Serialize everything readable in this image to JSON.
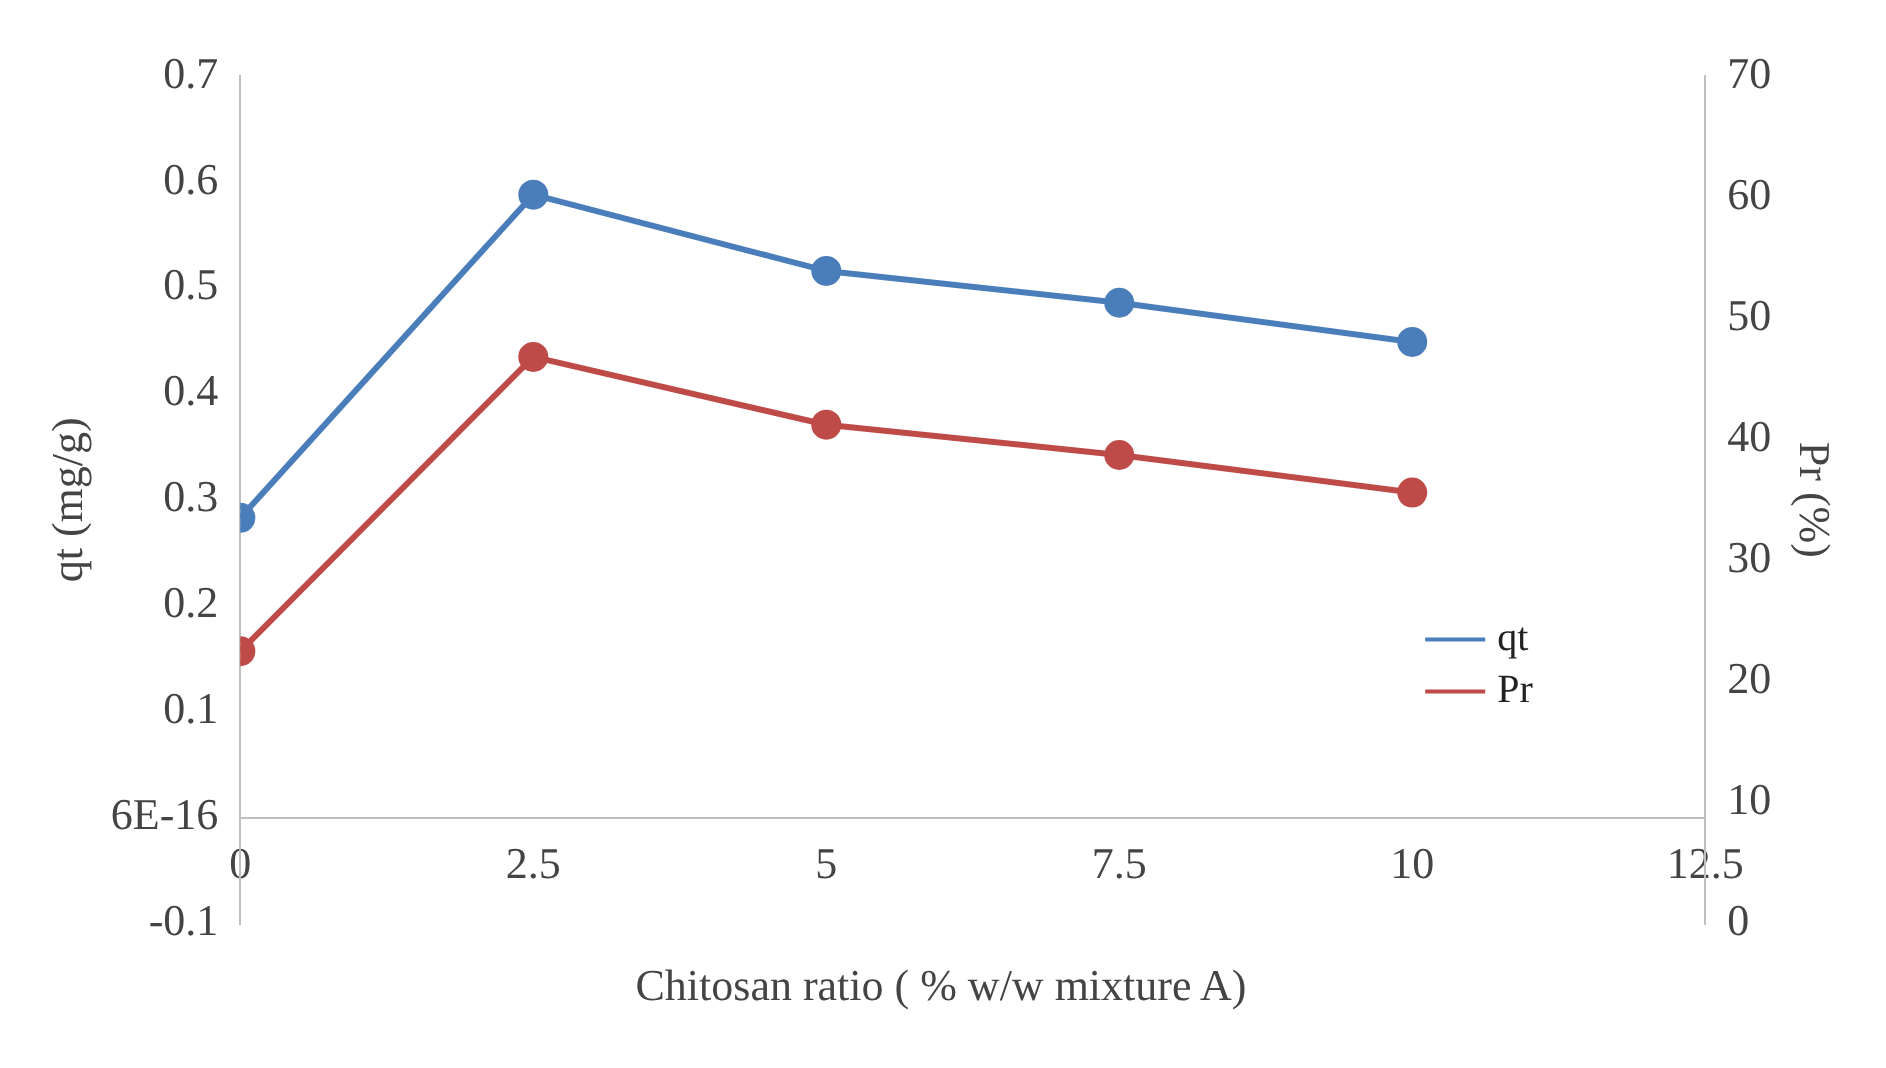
{
  "chart_data": {
    "type": "line",
    "xlabel": "Chitosan ratio ( % w/w mixture A)",
    "ylabel": "qt (mg/g)",
    "y2label": "Pr (%)",
    "x": [
      0,
      2.5,
      5,
      7.5,
      10
    ],
    "series": [
      {
        "name": "qt",
        "color": "#4a7ebb",
        "values": [
          0.283,
          0.588,
          0.516,
          0.486,
          0.449
        ]
      },
      {
        "name": "Pr",
        "color": "#be4b48",
        "axis": "y2",
        "values": [
          22.5,
          46.8,
          41.2,
          38.7,
          35.6
        ]
      }
    ],
    "xlim": [
      0,
      12.5
    ],
    "xticks": [
      0,
      2.5,
      5,
      7.5,
      10,
      12.5
    ],
    "ylim": [
      -0.1,
      0.7
    ],
    "yticks": [
      -0.1,
      {
        "value": 0,
        "label": "6E-16"
      },
      0.1,
      0.2,
      0.3,
      0.4,
      0.5,
      0.6,
      0.7
    ],
    "y2lim": [
      0,
      70
    ],
    "y2ticks": [
      0,
      10,
      20,
      30,
      40,
      50,
      60,
      70
    ],
    "grid": false,
    "legend": "bottom right",
    "marker": "circle",
    "line_style": "solid"
  }
}
